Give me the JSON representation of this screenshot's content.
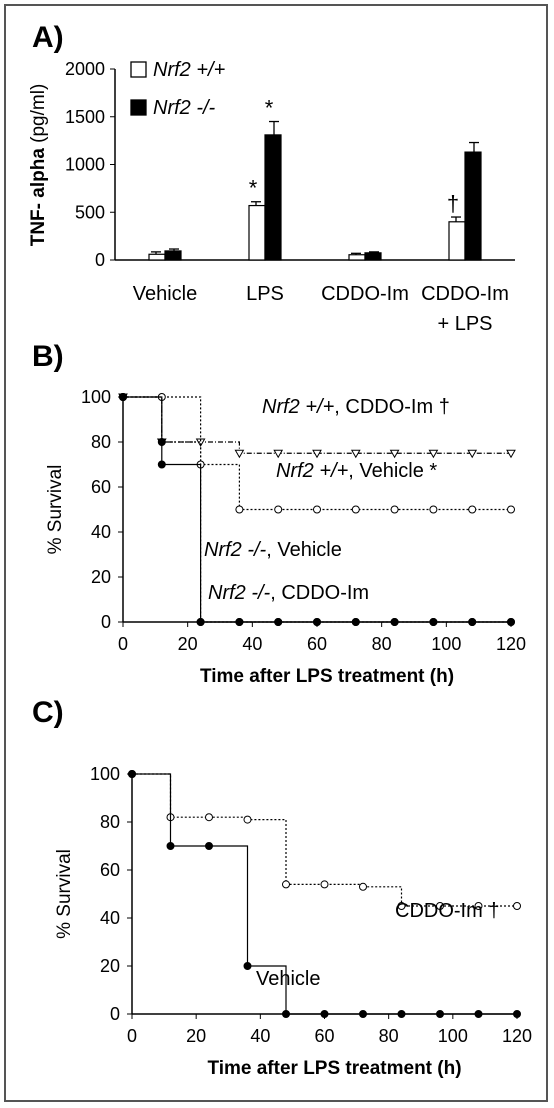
{
  "figure": {
    "panel_labels": [
      "A)",
      "B)",
      "C)"
    ]
  },
  "chart_data": [
    {
      "type": "bar",
      "panel": "A)",
      "ylabel_bold": "TNF- alpha",
      "ylabel_unit": "(pg/ml)",
      "ylim": [
        0,
        2000
      ],
      "yticks": [
        "0",
        "500",
        "1000",
        "1500",
        "2000"
      ],
      "categories": [
        "Vehicle",
        "LPS",
        "CDDO-Im",
        "CDDO-Im\n+ LPS"
      ],
      "series": [
        {
          "name": "Nrf2 +/+",
          "fill": "#ffffff",
          "values": [
            60,
            570,
            55,
            400
          ],
          "errors": [
            25,
            40,
            15,
            50
          ],
          "markers": [
            "",
            "*",
            "",
            "†"
          ]
        },
        {
          "name": "Nrf2 -/-",
          "fill": "#000000",
          "values": [
            95,
            1310,
            75,
            1130
          ],
          "errors": [
            20,
            140,
            10,
            100
          ],
          "markers": [
            "",
            "*",
            "",
            ""
          ]
        }
      ],
      "legend_position": "top-left"
    },
    {
      "type": "line",
      "panel": "B)",
      "xlabel": "Time after LPS treatment (h)",
      "ylabel": "% Survival",
      "xlim": [
        0,
        120
      ],
      "ylim": [
        0,
        100
      ],
      "xticks": [
        "0",
        "20",
        "40",
        "60",
        "80",
        "100",
        "120"
      ],
      "yticks": [
        "0",
        "20",
        "40",
        "60",
        "80",
        "100"
      ],
      "series": [
        {
          "name": "Nrf2 +/+, CDDO-Im †",
          "marker": "triangle-down",
          "dash": "dash-dot",
          "x": [
            0,
            12,
            24,
            36,
            48,
            60,
            72,
            84,
            96,
            108,
            120
          ],
          "y": [
            100,
            80,
            80,
            75,
            75,
            75,
            75,
            75,
            75,
            75,
            75
          ]
        },
        {
          "name": "Nrf2 +/+, Vehicle *",
          "marker": "open-circle",
          "dash": "dotted",
          "x": [
            0,
            12,
            24,
            36,
            48,
            60,
            72,
            84,
            96,
            108,
            120
          ],
          "y": [
            100,
            100,
            70,
            50,
            50,
            50,
            50,
            50,
            50,
            50,
            50
          ]
        },
        {
          "name": "Nrf2 -/-, Vehicle",
          "marker": "filled-circle",
          "dash": "solid",
          "x": [
            0,
            12,
            24,
            36,
            48,
            60,
            72,
            84,
            96,
            108,
            120
          ],
          "y": [
            100,
            70,
            0,
            0,
            0,
            0,
            0,
            0,
            0,
            0,
            0
          ]
        },
        {
          "name": "Nrf2 -/-, CDDO-Im",
          "marker": "filled-circle",
          "dash": "dotted",
          "x": [
            0,
            12,
            24,
            36,
            48,
            60,
            72,
            84,
            96,
            108,
            120
          ],
          "y": [
            100,
            80,
            0,
            0,
            0,
            0,
            0,
            0,
            0,
            0,
            0
          ]
        }
      ],
      "annotations": [
        {
          "italic": "Nrf2 +/+",
          "rest": ", CDDO-Im †"
        },
        {
          "italic": "Nrf2 +/+",
          "rest": ", Vehicle *"
        },
        {
          "italic": "Nrf2 -/-",
          "rest": ", Vehicle"
        },
        {
          "italic": "Nrf2 -/-",
          "rest": ", CDDO-Im"
        }
      ]
    },
    {
      "type": "line",
      "panel": "C)",
      "xlabel": "Time after LPS treatment (h)",
      "ylabel": "% Survival",
      "xlim": [
        0,
        120
      ],
      "ylim": [
        0,
        100
      ],
      "xticks": [
        "0",
        "20",
        "40",
        "60",
        "80",
        "100",
        "120"
      ],
      "yticks": [
        "0",
        "20",
        "40",
        "60",
        "80",
        "100"
      ],
      "series": [
        {
          "name": "CDDO-Im †",
          "marker": "open-circle",
          "dash": "dotted",
          "x": [
            0,
            12,
            24,
            36,
            48,
            60,
            72,
            84,
            96,
            108,
            120
          ],
          "y": [
            100,
            82,
            82,
            81,
            54,
            54,
            53,
            45,
            45,
            45,
            45
          ]
        },
        {
          "name": "Vehicle",
          "marker": "filled-circle",
          "dash": "solid",
          "x": [
            0,
            12,
            24,
            36,
            48,
            60,
            72,
            84,
            96,
            108,
            120
          ],
          "y": [
            100,
            70,
            70,
            20,
            0,
            0,
            0,
            0,
            0,
            0,
            0
          ]
        }
      ]
    }
  ]
}
